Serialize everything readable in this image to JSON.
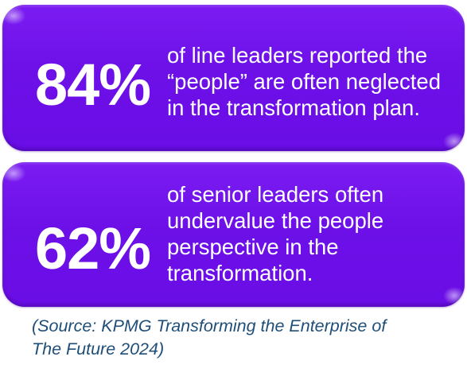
{
  "cards": [
    {
      "stat": "84%",
      "lines": [
        "of line leaders reported the",
        "“people” are often neglected",
        "in the transformation plan."
      ]
    },
    {
      "stat": "62%",
      "lines": [
        "of senior leaders often",
        "undervalue the people",
        "perspective in the",
        "transformation."
      ]
    }
  ],
  "source": {
    "lines": [
      "(Source: KPMG Transforming the Enterprise of",
      "The Future 2024)"
    ]
  },
  "colors": {
    "card": "#6d10e8",
    "stat_text": "#ffffff",
    "source_text": "#1f4e79"
  }
}
